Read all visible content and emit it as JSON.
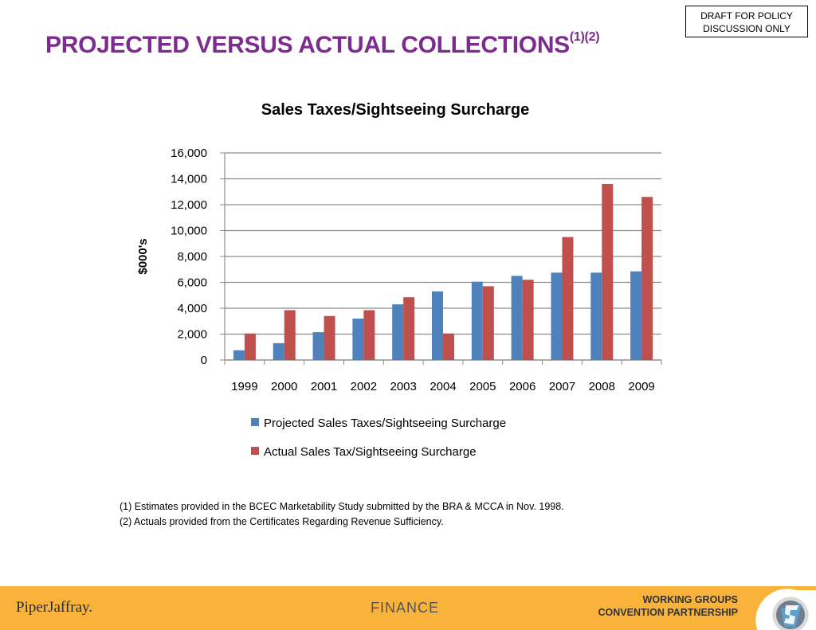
{
  "draft_box": {
    "line1": "DRAFT FOR POLICY",
    "line2": "DISCUSSION ONLY"
  },
  "slide": {
    "title": "PROJECTED VERSUS ACTUAL COLLECTIONS",
    "title_sup": "(1)(2)"
  },
  "chart_data": {
    "type": "bar",
    "title": "Sales Taxes/Sightseeing Surcharge",
    "xlabel": "",
    "ylabel": "$000's",
    "ylim": [
      0,
      16000
    ],
    "yticks": [
      0,
      2000,
      4000,
      6000,
      8000,
      10000,
      12000,
      14000,
      16000
    ],
    "ytick_labels": [
      "0",
      "2,000",
      "4,000",
      "6,000",
      "8,000",
      "10,000",
      "12,000",
      "14,000",
      "16,000"
    ],
    "grid": true,
    "legend_position": "bottom",
    "categories": [
      "1999",
      "2000",
      "2001",
      "2002",
      "2003",
      "2004",
      "2005",
      "2006",
      "2007",
      "2008",
      "2009"
    ],
    "series": [
      {
        "name": "Projected Sales Taxes/Sightseeing Surcharge",
        "color": "#4F81BD",
        "values": [
          750,
          1300,
          2150,
          3200,
          4300,
          5300,
          6050,
          6500,
          6750,
          6750,
          6850
        ]
      },
      {
        "name": "Actual Sales Tax/Sightseeing Surcharge",
        "color": "#C0504D",
        "values": [
          2050,
          3850,
          3400,
          3850,
          4850,
          2050,
          5700,
          6200,
          9500,
          13600,
          12600
        ]
      }
    ]
  },
  "notes": {
    "note1": "(1)  Estimates provided in the BCEC Marketability Study submitted by the BRA & MCCA in Nov. 1998.",
    "note2": "(2) Actuals provided from the Certificates Regarding Revenue Sufficiency."
  },
  "footer": {
    "logo": "PiperJaffray.",
    "center": "FINANCE",
    "right_line1": "WORKING GROUPS",
    "right_line2": "CONVENTION PARTNERSHIP",
    "background": "#F9B23A"
  }
}
